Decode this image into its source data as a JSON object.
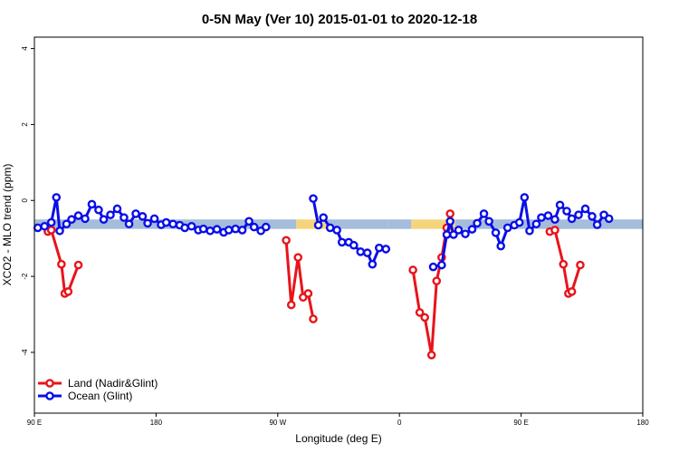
{
  "chart_data": {
    "type": "line",
    "title": "0-5N May (Ver 10)   2015-01-01 to 2020-12-18",
    "xlabel": "Longitude (deg E)",
    "ylabel": "XCO2 - MLO trend (ppm)",
    "xlim": [
      90,
      450
    ],
    "ylim": [
      -5.6,
      4.3
    ],
    "x_ticks": [
      {
        "value": 90,
        "label": "90 E"
      },
      {
        "value": 162,
        "label": "180"
      },
      {
        "value": 234,
        "label": "90 W"
      },
      {
        "value": 306,
        "label": "0"
      },
      {
        "value": 378,
        "label": "90 E"
      },
      {
        "value": 450,
        "label": "180"
      }
    ],
    "y_ticks": [
      {
        "value": 4,
        "label": "4"
      },
      {
        "value": 2,
        "label": "2"
      },
      {
        "value": 0,
        "label": "0"
      },
      {
        "value": -2,
        "label": "-2"
      },
      {
        "value": -4,
        "label": "-4"
      }
    ],
    "grid": false,
    "legend_position": "bottom-left",
    "band": {
      "y_min": -0.75,
      "y_max": -0.5,
      "segments": [
        {
          "x0": 90,
          "x1": 245,
          "color": "#a5bcdb"
        },
        {
          "x0": 245,
          "x1": 263,
          "color": "#f5d57c"
        },
        {
          "x0": 263,
          "x1": 299,
          "color": "#a5bcdb"
        },
        {
          "x0": 299,
          "x1": 313,
          "color": "#a5bcdb"
        },
        {
          "x0": 313,
          "x1": 339,
          "color": "#f5d57c"
        },
        {
          "x0": 339,
          "x1": 450,
          "color": "#a5bcdb"
        }
      ]
    },
    "series": [
      {
        "name": "Land (Nadir&Glint)",
        "color": "#e8141a",
        "segments": [
          [
            [
              98,
              -0.82
            ],
            [
              100,
              -0.78
            ],
            [
              106,
              -1.68
            ],
            [
              108,
              -2.45
            ],
            [
              110,
              -2.4
            ],
            [
              116,
              -1.7
            ]
          ],
          [
            [
              239,
              -1.05
            ],
            [
              242,
              -2.75
            ],
            [
              246,
              -1.5
            ],
            [
              249,
              -2.55
            ],
            [
              252,
              -2.45
            ],
            [
              255,
              -3.12
            ]
          ],
          [
            [
              314,
              -1.83
            ],
            [
              318,
              -2.95
            ],
            [
              321,
              -3.08
            ],
            [
              325,
              -4.07
            ],
            [
              328,
              -2.12
            ],
            [
              331,
              -1.5
            ],
            [
              334,
              -0.72
            ],
            [
              336,
              -0.35
            ]
          ],
          [
            [
              395,
              -0.82
            ],
            [
              398,
              -0.78
            ],
            [
              403,
              -1.68
            ],
            [
              406,
              -2.45
            ],
            [
              408,
              -2.4
            ],
            [
              413,
              -1.7
            ]
          ]
        ]
      },
      {
        "name": "Ocean (Glint)",
        "color": "#0a0ee6",
        "segments": [
          [
            [
              92,
              -0.72
            ],
            [
              96,
              -0.68
            ],
            [
              100,
              -0.58
            ],
            [
              103,
              0.08
            ],
            [
              105,
              -0.8
            ],
            [
              109,
              -0.62
            ],
            [
              112,
              -0.5
            ],
            [
              116,
              -0.4
            ],
            [
              120,
              -0.48
            ],
            [
              124,
              -0.1
            ],
            [
              128,
              -0.25
            ],
            [
              131,
              -0.5
            ],
            [
              135,
              -0.38
            ],
            [
              139,
              -0.22
            ],
            [
              143,
              -0.45
            ],
            [
              146,
              -0.62
            ],
            [
              150,
              -0.35
            ],
            [
              154,
              -0.42
            ],
            [
              157,
              -0.6
            ],
            [
              161,
              -0.48
            ],
            [
              165,
              -0.64
            ],
            [
              168,
              -0.58
            ],
            [
              172,
              -0.62
            ],
            [
              176,
              -0.65
            ],
            [
              179,
              -0.72
            ],
            [
              183,
              -0.68
            ],
            [
              187,
              -0.78
            ],
            [
              190,
              -0.75
            ],
            [
              194,
              -0.8
            ],
            [
              198,
              -0.76
            ],
            [
              202,
              -0.84
            ],
            [
              205,
              -0.78
            ],
            [
              209,
              -0.75
            ],
            [
              213,
              -0.78
            ],
            [
              217,
              -0.55
            ],
            [
              220,
              -0.7
            ],
            [
              224,
              -0.8
            ],
            [
              227,
              -0.7
            ]
          ],
          [
            [
              255,
              0.05
            ],
            [
              258,
              -0.65
            ],
            [
              261,
              -0.45
            ],
            [
              265,
              -0.72
            ],
            [
              269,
              -0.78
            ],
            [
              272,
              -1.1
            ],
            [
              276,
              -1.1
            ],
            [
              279,
              -1.18
            ],
            [
              283,
              -1.35
            ],
            [
              287,
              -1.38
            ],
            [
              290,
              -1.68
            ],
            [
              294,
              -1.25
            ],
            [
              298,
              -1.28
            ]
          ],
          [
            [
              326,
              -1.75
            ],
            [
              331,
              -1.7
            ],
            [
              334,
              -0.9
            ],
            [
              336,
              -0.55
            ],
            [
              338,
              -0.9
            ],
            [
              341,
              -0.78
            ],
            [
              345,
              -0.88
            ],
            [
              349,
              -0.76
            ],
            [
              352,
              -0.6
            ],
            [
              356,
              -0.35
            ],
            [
              359,
              -0.55
            ],
            [
              363,
              -0.85
            ],
            [
              366,
              -1.2
            ],
            [
              370,
              -0.72
            ],
            [
              374,
              -0.65
            ],
            [
              377,
              -0.58
            ],
            [
              380,
              0.08
            ],
            [
              383,
              -0.8
            ],
            [
              387,
              -0.62
            ],
            [
              390,
              -0.45
            ],
            [
              394,
              -0.4
            ],
            [
              398,
              -0.5
            ],
            [
              401,
              -0.12
            ],
            [
              405,
              -0.28
            ],
            [
              408,
              -0.48
            ],
            [
              412,
              -0.38
            ],
            [
              416,
              -0.22
            ],
            [
              420,
              -0.42
            ],
            [
              423,
              -0.64
            ],
            [
              427,
              -0.38
            ],
            [
              430,
              -0.48
            ]
          ]
        ]
      }
    ]
  }
}
